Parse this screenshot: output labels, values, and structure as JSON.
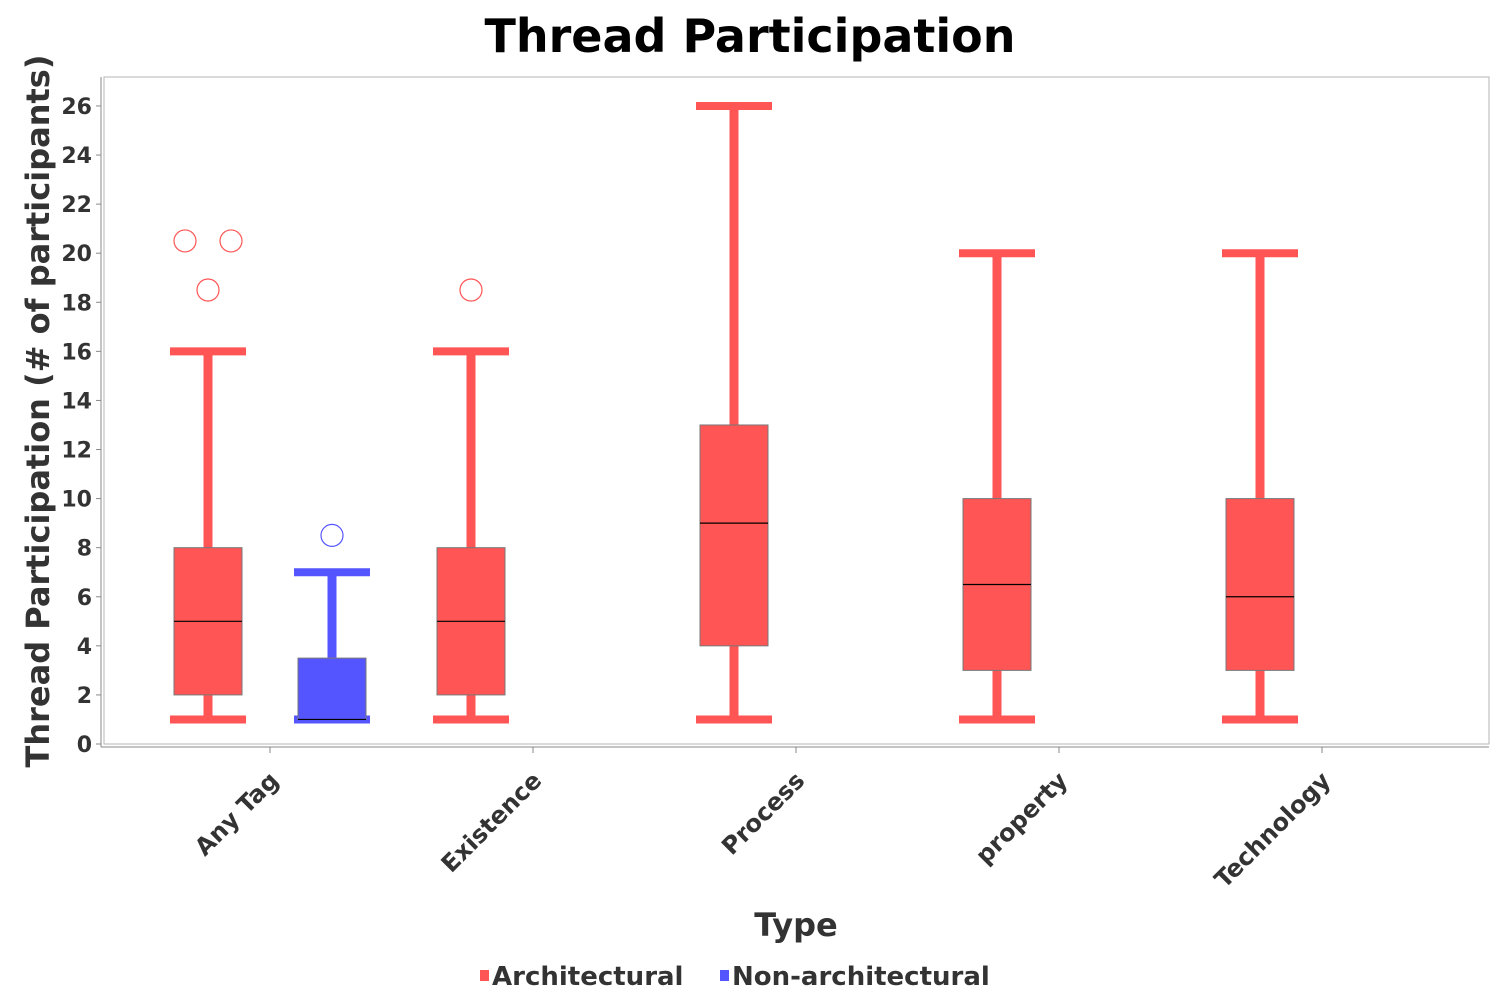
{
  "chart_data": {
    "type": "box",
    "title": "Thread Participation",
    "xlabel": "Type",
    "ylabel": "Thread Participation (# of participants)",
    "ylim": [
      0,
      27
    ],
    "yticks": [
      0,
      2,
      4,
      6,
      8,
      10,
      12,
      14,
      16,
      18,
      20,
      22,
      24,
      26
    ],
    "categories": [
      "Any Tag",
      "Existence",
      "Process",
      "property",
      "Technology"
    ],
    "legend_position": "bottom",
    "grid": false,
    "series": [
      {
        "name": "Architectural",
        "color": "#ff5555",
        "boxes": [
          {
            "category": "Any Tag",
            "whisker_low": 1,
            "q1": 2,
            "median": 5,
            "q3": 8,
            "whisker_high": 16,
            "outliers": [
              20.5,
              18.5,
              20.5
            ]
          },
          {
            "category": "Existence",
            "whisker_low": 1,
            "q1": 2,
            "median": 5,
            "q3": 8,
            "whisker_high": 16,
            "outliers": [
              18.5
            ]
          },
          {
            "category": "Process",
            "whisker_low": 1,
            "q1": 4,
            "median": 9,
            "q3": 13,
            "whisker_high": 26,
            "outliers": []
          },
          {
            "category": "property",
            "whisker_low": 1,
            "q1": 3,
            "median": 6.5,
            "q3": 10,
            "whisker_high": 20,
            "outliers": []
          },
          {
            "category": "Technology",
            "whisker_low": 1,
            "q1": 3,
            "median": 6,
            "q3": 10,
            "whisker_high": 20,
            "outliers": []
          }
        ]
      },
      {
        "name": "Non-architectural",
        "color": "#5555ff",
        "boxes": [
          {
            "category": "Any Tag",
            "whisker_low": 1,
            "q1": 1,
            "median": 1,
            "q3": 3.5,
            "whisker_high": 7,
            "outliers": [
              8.5
            ]
          }
        ]
      }
    ]
  }
}
